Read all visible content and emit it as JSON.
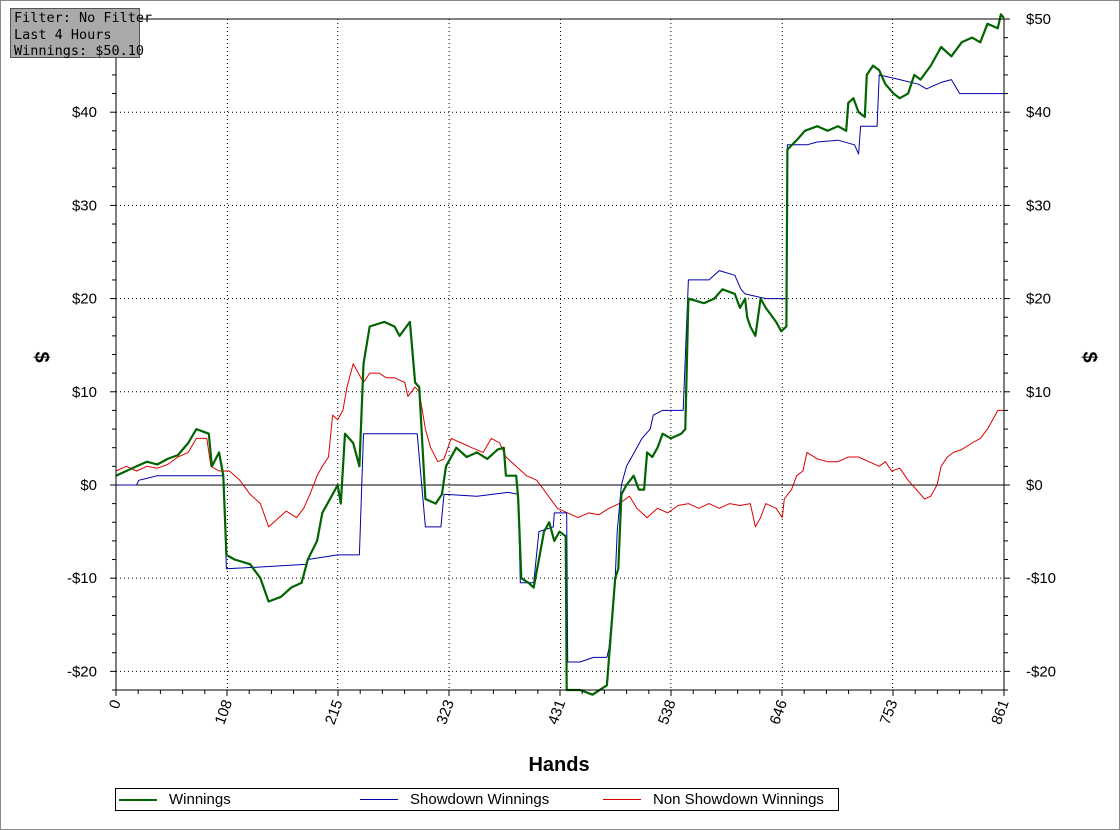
{
  "filter_box": {
    "line1": "Filter: No Filter",
    "line2": "Last 4 Hours",
    "line3": "Winnings: $50.10"
  },
  "colors": {
    "winnings": "#006400",
    "showdown": "#0000aa",
    "nonshowdown": "#dd0000",
    "grid": "#000000",
    "zero_line": "#000000"
  },
  "chart_data": {
    "type": "line",
    "title": "",
    "xlabel": "Hands",
    "ylabel": "$",
    "y2label": "$",
    "xlim": [
      0,
      861
    ],
    "ylim": [
      -22,
      50
    ],
    "x_ticks": [
      0,
      108,
      215,
      323,
      431,
      538,
      646,
      753,
      861
    ],
    "x_tick_labels": [
      "0",
      "108",
      "215",
      "323",
      "431",
      "538",
      "646",
      "753",
      "861"
    ],
    "y_ticks": [
      -20,
      -10,
      0,
      10,
      20,
      30,
      40,
      50
    ],
    "y_tick_labels": [
      "-$20",
      "-$10",
      "$0",
      "$10",
      "$20",
      "$30",
      "$40",
      "$50"
    ],
    "grid": true,
    "legend_position": "bottom",
    "series": [
      {
        "name": "Winnings",
        "points": [
          [
            0,
            1
          ],
          [
            10,
            1.5
          ],
          [
            20,
            2
          ],
          [
            30,
            2.5
          ],
          [
            40,
            2.2
          ],
          [
            50,
            2.8
          ],
          [
            60,
            3.2
          ],
          [
            70,
            4.5
          ],
          [
            78,
            6
          ],
          [
            90,
            5.5
          ],
          [
            93,
            2
          ],
          [
            100,
            3.5
          ],
          [
            104,
            1
          ],
          [
            107,
            -7.5
          ],
          [
            115,
            -8
          ],
          [
            130,
            -8.5
          ],
          [
            140,
            -10
          ],
          [
            148,
            -12.5
          ],
          [
            160,
            -12
          ],
          [
            170,
            -11
          ],
          [
            180,
            -10.5
          ],
          [
            186,
            -8
          ],
          [
            195,
            -6
          ],
          [
            200,
            -3
          ],
          [
            210,
            -1
          ],
          [
            215,
            0
          ],
          [
            218,
            -2
          ],
          [
            222,
            5.5
          ],
          [
            230,
            4.5
          ],
          [
            236,
            2
          ],
          [
            240,
            13
          ],
          [
            246,
            17
          ],
          [
            260,
            17.5
          ],
          [
            270,
            17
          ],
          [
            275,
            16
          ],
          [
            285,
            17.5
          ],
          [
            290,
            11
          ],
          [
            294,
            10.5
          ],
          [
            300,
            -1.5
          ],
          [
            310,
            -2
          ],
          [
            316,
            -1
          ],
          [
            320,
            2
          ],
          [
            330,
            4
          ],
          [
            340,
            3
          ],
          [
            350,
            3.5
          ],
          [
            360,
            2.8
          ],
          [
            370,
            3.8
          ],
          [
            376,
            4
          ],
          [
            378,
            1
          ],
          [
            388,
            1
          ],
          [
            390,
            -1.5
          ],
          [
            393,
            -10
          ],
          [
            400,
            -10.5
          ],
          [
            405,
            -11
          ],
          [
            410,
            -8
          ],
          [
            415,
            -5
          ],
          [
            420,
            -4
          ],
          [
            425,
            -6
          ],
          [
            430,
            -5
          ],
          [
            436,
            -5.5
          ],
          [
            437,
            -22
          ],
          [
            450,
            -22
          ],
          [
            462,
            -22.5
          ],
          [
            476,
            -21.5
          ],
          [
            484,
            -10
          ],
          [
            487,
            -9
          ],
          [
            490,
            -1
          ],
          [
            495,
            0
          ],
          [
            502,
            1
          ],
          [
            507,
            -0.5
          ],
          [
            512,
            -0.5
          ],
          [
            515,
            3.5
          ],
          [
            520,
            3
          ],
          [
            525,
            4
          ],
          [
            530,
            5.5
          ],
          [
            538,
            5
          ],
          [
            548,
            5.5
          ],
          [
            552,
            6
          ],
          [
            555,
            20
          ],
          [
            570,
            19.5
          ],
          [
            580,
            20
          ],
          [
            588,
            21
          ],
          [
            600,
            20.5
          ],
          [
            605,
            19
          ],
          [
            610,
            20
          ],
          [
            612,
            18
          ],
          [
            615,
            17
          ],
          [
            620,
            16
          ],
          [
            625,
            20
          ],
          [
            630,
            19
          ],
          [
            640,
            17.5
          ],
          [
            645,
            16.5
          ],
          [
            650,
            17
          ],
          [
            651,
            36
          ],
          [
            660,
            37
          ],
          [
            668,
            38
          ],
          [
            680,
            38.5
          ],
          [
            690,
            38
          ],
          [
            700,
            38.5
          ],
          [
            708,
            38
          ],
          [
            710,
            41
          ],
          [
            715,
            41.5
          ],
          [
            720,
            40
          ],
          [
            726,
            39.5
          ],
          [
            728,
            44
          ],
          [
            734,
            45
          ],
          [
            740,
            44.5
          ],
          [
            746,
            43
          ],
          [
            754,
            42
          ],
          [
            760,
            41.5
          ],
          [
            768,
            42
          ],
          [
            774,
            44
          ],
          [
            780,
            43.5
          ],
          [
            790,
            45
          ],
          [
            800,
            47
          ],
          [
            810,
            46
          ],
          [
            820,
            47.5
          ],
          [
            830,
            48
          ],
          [
            838,
            47.5
          ],
          [
            845,
            49.5
          ],
          [
            855,
            49
          ],
          [
            858,
            50.5
          ],
          [
            861,
            50.1
          ]
        ]
      },
      {
        "name": "Showdown Winnings",
        "points": [
          [
            0,
            0
          ],
          [
            20,
            0
          ],
          [
            22,
            0.5
          ],
          [
            30,
            0.7
          ],
          [
            40,
            1
          ],
          [
            104,
            1
          ],
          [
            107,
            -9
          ],
          [
            140,
            -8.8
          ],
          [
            185,
            -8.5
          ],
          [
            186,
            -8
          ],
          [
            215,
            -7.5
          ],
          [
            236,
            -7.5
          ],
          [
            240,
            5.5
          ],
          [
            292,
            5.5
          ],
          [
            300,
            -4.5
          ],
          [
            315,
            -4.5
          ],
          [
            318,
            -1
          ],
          [
            350,
            -1.2
          ],
          [
            380,
            -0.8
          ],
          [
            390,
            -1
          ],
          [
            392,
            -10.5
          ],
          [
            405,
            -10.5
          ],
          [
            410,
            -5
          ],
          [
            424,
            -4.5
          ],
          [
            425,
            -3
          ],
          [
            437,
            -3
          ],
          [
            438,
            -19
          ],
          [
            450,
            -19
          ],
          [
            463,
            -18.5
          ],
          [
            476,
            -18.5
          ],
          [
            478,
            -17.5
          ],
          [
            484,
            -10
          ],
          [
            486,
            -5
          ],
          [
            490,
            0
          ],
          [
            495,
            2
          ],
          [
            500,
            3
          ],
          [
            510,
            5
          ],
          [
            518,
            6
          ],
          [
            521,
            7.5
          ],
          [
            530,
            8
          ],
          [
            547,
            8
          ],
          [
            550,
            8
          ],
          [
            555,
            22
          ],
          [
            575,
            22
          ],
          [
            585,
            23
          ],
          [
            600,
            22.5
          ],
          [
            606,
            21
          ],
          [
            610,
            20.5
          ],
          [
            630,
            20
          ],
          [
            650,
            20
          ],
          [
            651,
            36.5
          ],
          [
            670,
            36.5
          ],
          [
            680,
            36.8
          ],
          [
            700,
            37
          ],
          [
            716,
            36.5
          ],
          [
            720,
            35.5
          ],
          [
            722,
            38.5
          ],
          [
            738,
            38.5
          ],
          [
            740,
            44
          ],
          [
            760,
            43.5
          ],
          [
            778,
            43
          ],
          [
            786,
            42.5
          ],
          [
            792,
            42.8
          ],
          [
            800,
            43.2
          ],
          [
            810,
            43.5
          ],
          [
            818,
            42
          ],
          [
            861,
            42
          ]
        ]
      },
      {
        "name": "Non Showdown Winnings",
        "points": [
          [
            0,
            1.5
          ],
          [
            10,
            2
          ],
          [
            20,
            1.5
          ],
          [
            30,
            2
          ],
          [
            40,
            1.8
          ],
          [
            50,
            2.2
          ],
          [
            60,
            3
          ],
          [
            70,
            3.5
          ],
          [
            78,
            5
          ],
          [
            88,
            5
          ],
          [
            92,
            2
          ],
          [
            100,
            1.5
          ],
          [
            110,
            1.5
          ],
          [
            120,
            0.5
          ],
          [
            130,
            -1
          ],
          [
            140,
            -2
          ],
          [
            148,
            -4.5
          ],
          [
            158,
            -3.5
          ],
          [
            165,
            -2.8
          ],
          [
            175,
            -3.5
          ],
          [
            182,
            -2.5
          ],
          [
            188,
            -1
          ],
          [
            195,
            1
          ],
          [
            200,
            2
          ],
          [
            206,
            3
          ],
          [
            210,
            7.5
          ],
          [
            215,
            7
          ],
          [
            220,
            8
          ],
          [
            224,
            10.5
          ],
          [
            230,
            13
          ],
          [
            240,
            11
          ],
          [
            246,
            12
          ],
          [
            255,
            12
          ],
          [
            262,
            11.5
          ],
          [
            270,
            11.5
          ],
          [
            280,
            11
          ],
          [
            283,
            9.5
          ],
          [
            290,
            10.5
          ],
          [
            294,
            10
          ],
          [
            300,
            6
          ],
          [
            305,
            4
          ],
          [
            312,
            2.5
          ],
          [
            318,
            2.8
          ],
          [
            325,
            5
          ],
          [
            335,
            4.5
          ],
          [
            345,
            4
          ],
          [
            356,
            3.5
          ],
          [
            364,
            5
          ],
          [
            372,
            4.5
          ],
          [
            378,
            3
          ],
          [
            388,
            2
          ],
          [
            398,
            1
          ],
          [
            408,
            0.5
          ],
          [
            418,
            -1
          ],
          [
            428,
            -2.5
          ],
          [
            438,
            -3
          ],
          [
            448,
            -3.5
          ],
          [
            458,
            -3
          ],
          [
            468,
            -3.2
          ],
          [
            478,
            -2.5
          ],
          [
            488,
            -2
          ],
          [
            498,
            -1.2
          ],
          [
            505,
            -2.5
          ],
          [
            515,
            -3.5
          ],
          [
            525,
            -2.5
          ],
          [
            535,
            -3
          ],
          [
            545,
            -2.2
          ],
          [
            555,
            -2
          ],
          [
            565,
            -2.5
          ],
          [
            575,
            -2
          ],
          [
            585,
            -2.5
          ],
          [
            595,
            -2
          ],
          [
            605,
            -2.2
          ],
          [
            615,
            -2
          ],
          [
            620,
            -4.5
          ],
          [
            625,
            -3.5
          ],
          [
            630,
            -2
          ],
          [
            640,
            -2.5
          ],
          [
            646,
            -3.5
          ],
          [
            648,
            -1.5
          ],
          [
            655,
            -0.5
          ],
          [
            660,
            1
          ],
          [
            666,
            1.5
          ],
          [
            670,
            3.5
          ],
          [
            680,
            2.8
          ],
          [
            690,
            2.5
          ],
          [
            700,
            2.5
          ],
          [
            710,
            3
          ],
          [
            720,
            3
          ],
          [
            730,
            2.5
          ],
          [
            740,
            2
          ],
          [
            746,
            2.5
          ],
          [
            752,
            1.5
          ],
          [
            760,
            1.8
          ],
          [
            768,
            0.5
          ],
          [
            776,
            -0.5
          ],
          [
            780,
            -1
          ],
          [
            784,
            -1.5
          ],
          [
            790,
            -1.2
          ],
          [
            796,
            0
          ],
          [
            800,
            2
          ],
          [
            806,
            3
          ],
          [
            812,
            3.5
          ],
          [
            820,
            3.8
          ],
          [
            830,
            4.5
          ],
          [
            838,
            5
          ],
          [
            845,
            6
          ],
          [
            850,
            7
          ],
          [
            855,
            8
          ],
          [
            861,
            8
          ]
        ]
      }
    ]
  }
}
